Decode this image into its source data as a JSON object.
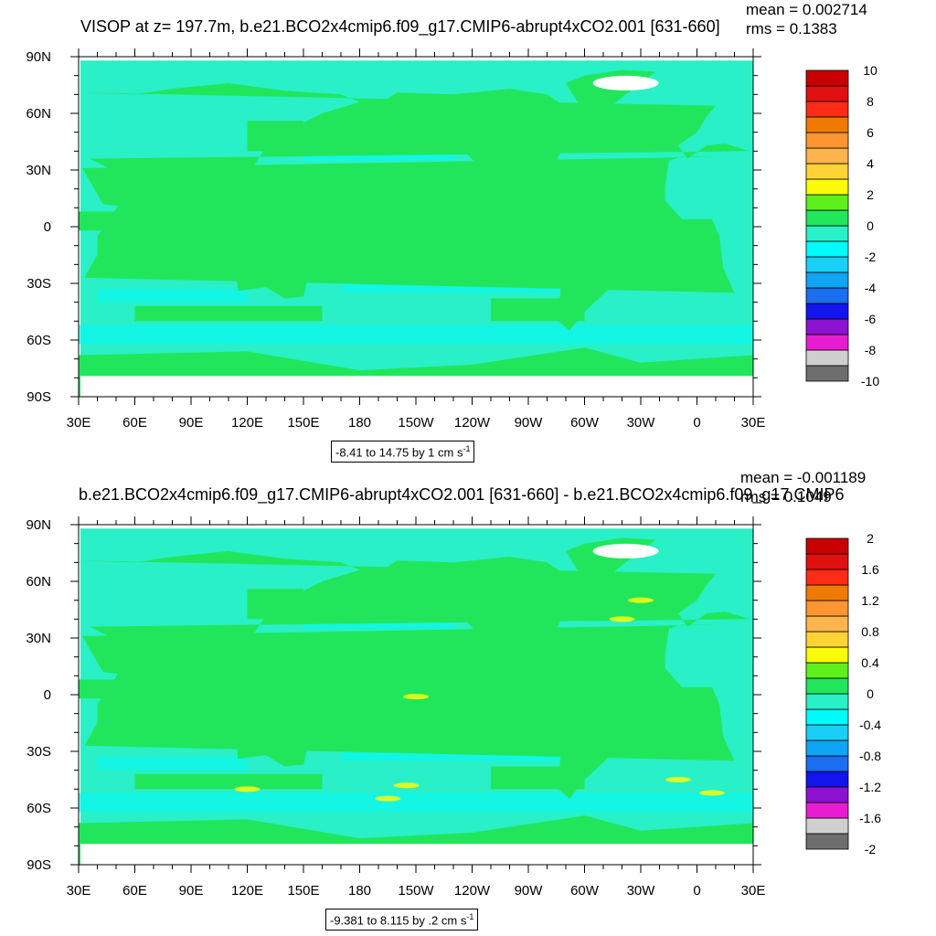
{
  "panels": [
    {
      "title": "VISOP at z= 197.7m, b.e21.BCO2x4cmip6.f09_g17.CMIP6-abrupt4xCO2.001 [631-660]",
      "mean_text": "mean = 0.002714",
      "rms_text": "rms = 0.1383",
      "info_text": "-8.41 to 14.75 by 1 cm s",
      "info_unit_exp": "-1"
    },
    {
      "title": "b.e21.BCO2x4cmip6.f09_g17.CMIP6-abrupt4xCO2.001 [631-660] - b.e21.BCO2x4cmip6.f09_g17.CMIP6",
      "mean_text": "mean = -0.001189",
      "rms_text": "rms = 0.1049",
      "info_text": "-9.381 to 8.115 by .2 cm s",
      "info_unit_exp": "-1"
    }
  ],
  "chart_data": [
    {
      "type": "heatmap",
      "title": "VISOP at z= 197.7m, b.e21.BCO2x4cmip6.f09_g17.CMIP6-abrupt4xCO2.001 [631-660]",
      "x_tick_labels": [
        "30E",
        "60E",
        "90E",
        "120E",
        "150E",
        "180",
        "150W",
        "120W",
        "90W",
        "60W",
        "30W",
        "0",
        "30E"
      ],
      "y_tick_labels": [
        "90N",
        "60N",
        "30N",
        "0",
        "30S",
        "60S",
        "90S"
      ],
      "xlim": [
        30,
        390
      ],
      "ylim": [
        -90,
        90
      ],
      "colorbar_labels": [
        "10",
        "8",
        "6",
        "4",
        "2",
        "0",
        "-2",
        "-4",
        "-6",
        "-8",
        "-10"
      ],
      "colorbar_colors": [
        "#6e6e6e",
        "#cfcfcf",
        "#e81cd1",
        "#8d12d2",
        "#1414ee",
        "#1a6eef",
        "#10a4f4",
        "#19cff5",
        "#00fbfb",
        "#29f0c6",
        "#21e65c",
        "#5ef01b",
        "#fbfb09",
        "#fdd335",
        "#fdb44c",
        "#fd9630",
        "#ee7b00",
        "#fc2c17",
        "#e01010",
        "#c80000"
      ],
      "field_colors": {
        "background": "#21e65c",
        "negative": "#29f0c6",
        "weak_negative": "#00fbfb",
        "land_mask": "#ffffff"
      },
      "stats": {
        "mean": 0.002714,
        "rms": 0.1383
      },
      "contour_range": {
        "min": -8.41,
        "max": 14.75,
        "interval": 1,
        "units": "cm s-1"
      }
    },
    {
      "type": "heatmap",
      "title": "b.e21.BCO2x4cmip6.f09_g17.CMIP6-abrupt4xCO2.001 [631-660] - b.e21.BCO2x4cmip6.f09_g17.CMIP6",
      "x_tick_labels": [
        "30E",
        "60E",
        "90E",
        "120E",
        "150E",
        "180",
        "150W",
        "120W",
        "90W",
        "60W",
        "30W",
        "0",
        "30E"
      ],
      "y_tick_labels": [
        "90N",
        "60N",
        "30N",
        "0",
        "30S",
        "60S",
        "90S"
      ],
      "xlim": [
        30,
        390
      ],
      "ylim": [
        -90,
        90
      ],
      "colorbar_labels": [
        "2",
        "1.6",
        "1.2",
        "0.8",
        "0.4",
        "0",
        "-0.4",
        "-0.8",
        "-1.2",
        "-1.6",
        "-2"
      ],
      "colorbar_colors": [
        "#6e6e6e",
        "#cfcfcf",
        "#e81cd1",
        "#8d12d2",
        "#1414ee",
        "#1a6eef",
        "#10a4f4",
        "#19cff5",
        "#00fbfb",
        "#29f0c6",
        "#21e65c",
        "#5ef01b",
        "#fbfb09",
        "#fdd335",
        "#fdb44c",
        "#fd9630",
        "#ee7b00",
        "#fc2c17",
        "#e01010",
        "#c80000"
      ],
      "field_colors": {
        "background": "#21e65c",
        "negative": "#29f0c6",
        "weak_negative": "#00fbfb",
        "positive_anomaly": "#fbfb09",
        "land_mask": "#ffffff"
      },
      "stats": {
        "mean": -0.001189,
        "rms": 0.1049
      },
      "contour_range": {
        "min": -9.381,
        "max": 8.115,
        "interval": 0.2,
        "units": "cm s-1"
      }
    }
  ]
}
